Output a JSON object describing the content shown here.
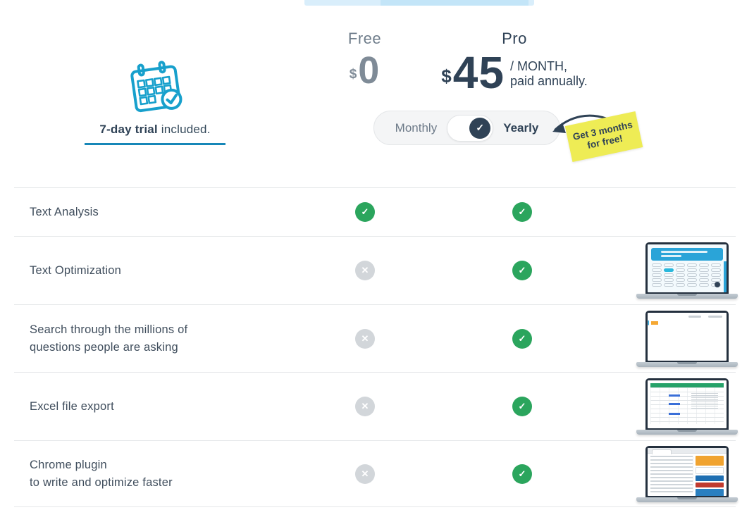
{
  "trial": {
    "bold": "7-day trial",
    "rest": " included."
  },
  "plans": {
    "free": {
      "name": "Free",
      "currency": "$",
      "amount": "0"
    },
    "pro": {
      "name": "Pro",
      "currency": "$",
      "amount": "45",
      "period_line1": "/ MONTH,",
      "period_line2": "paid annually."
    }
  },
  "billing": {
    "monthly_label": "Monthly",
    "yearly_label": "Yearly",
    "selected": "Yearly"
  },
  "promo": {
    "line1": "Get 3 months",
    "line2": "for free!"
  },
  "icons": {
    "check": "✓",
    "cross": "✕",
    "calendar": "calendar-with-check"
  },
  "colors": {
    "navy": "#2f4256",
    "green": "#2ba55d",
    "gray_circle": "#d2d6da",
    "cyan": "#17a0cc",
    "underline": "#1787b8",
    "yellow": "#eeec55"
  },
  "table": {
    "rows": [
      {
        "feature_line1": "Text Analysis",
        "feature_line2": "",
        "free": "included",
        "pro": "included",
        "thumbnail": ""
      },
      {
        "feature_line1": "Text Optimization",
        "feature_line2": "",
        "free": "not-included",
        "pro": "included",
        "thumbnail": "text-optimization-app"
      },
      {
        "feature_line1": "Search through the millions of",
        "feature_line2": "questions people are asking",
        "free": "not-included",
        "pro": "included",
        "thumbnail": "questions-search-app"
      },
      {
        "feature_line1": "Excel file export",
        "feature_line2": "",
        "free": "not-included",
        "pro": "included",
        "thumbnail": "excel-spreadsheet"
      },
      {
        "feature_line1": "Chrome plugin",
        "feature_line2": "to write and optimize faster",
        "free": "not-included",
        "pro": "included",
        "thumbnail": "chrome-plugin-browser"
      }
    ]
  }
}
